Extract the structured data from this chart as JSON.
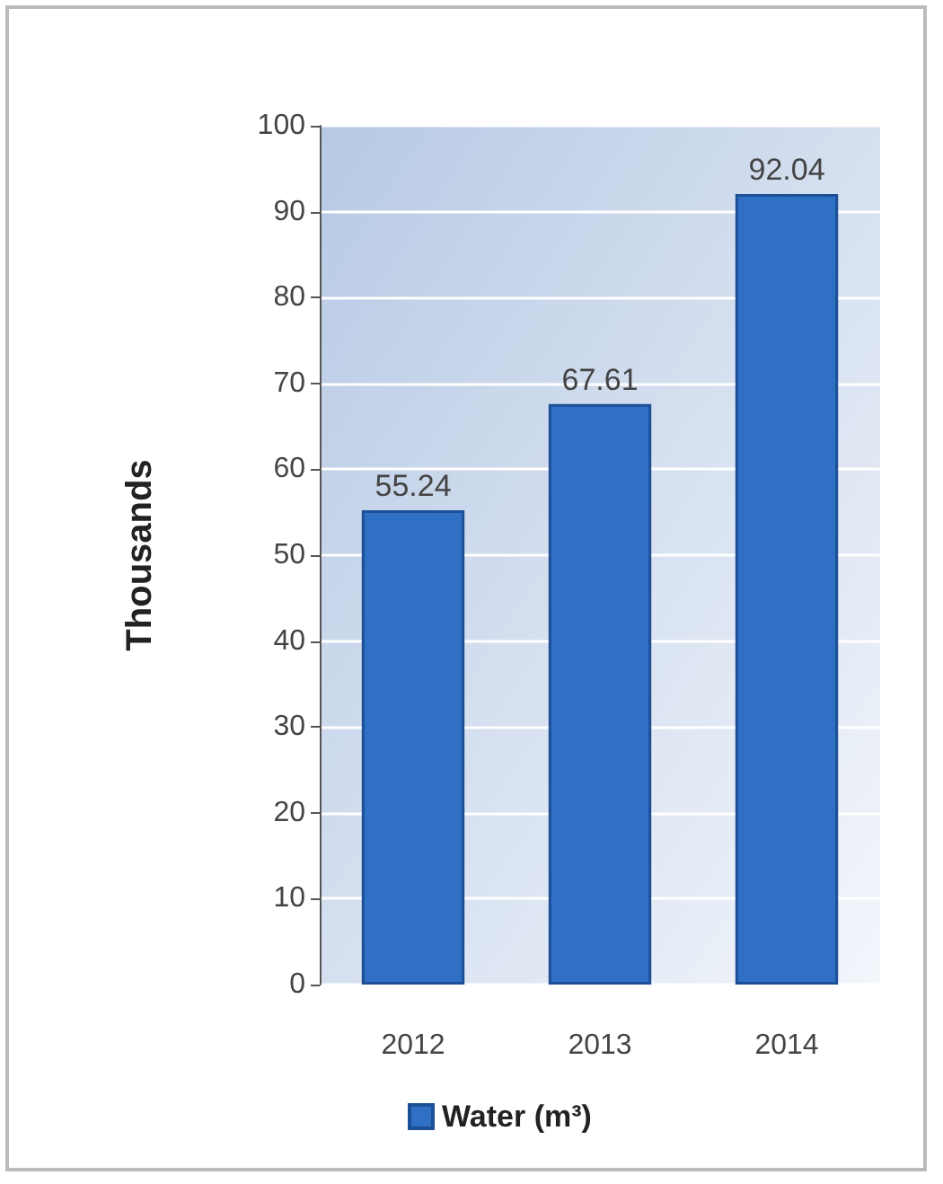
{
  "chart_data": {
    "type": "bar",
    "ylabel": "Thousands",
    "categories": [
      "2012",
      "2013",
      "2014"
    ],
    "series": [
      {
        "name": "Water (m³)",
        "color": "#2f6fc4",
        "values": [
          55.24,
          67.61,
          92.04
        ]
      }
    ],
    "ylim": [
      0,
      100
    ],
    "yticks": [
      0,
      10,
      20,
      30,
      40,
      50,
      60,
      70,
      80,
      90,
      100
    ],
    "grid": "y",
    "legend": "bottom",
    "data_labels": true
  }
}
